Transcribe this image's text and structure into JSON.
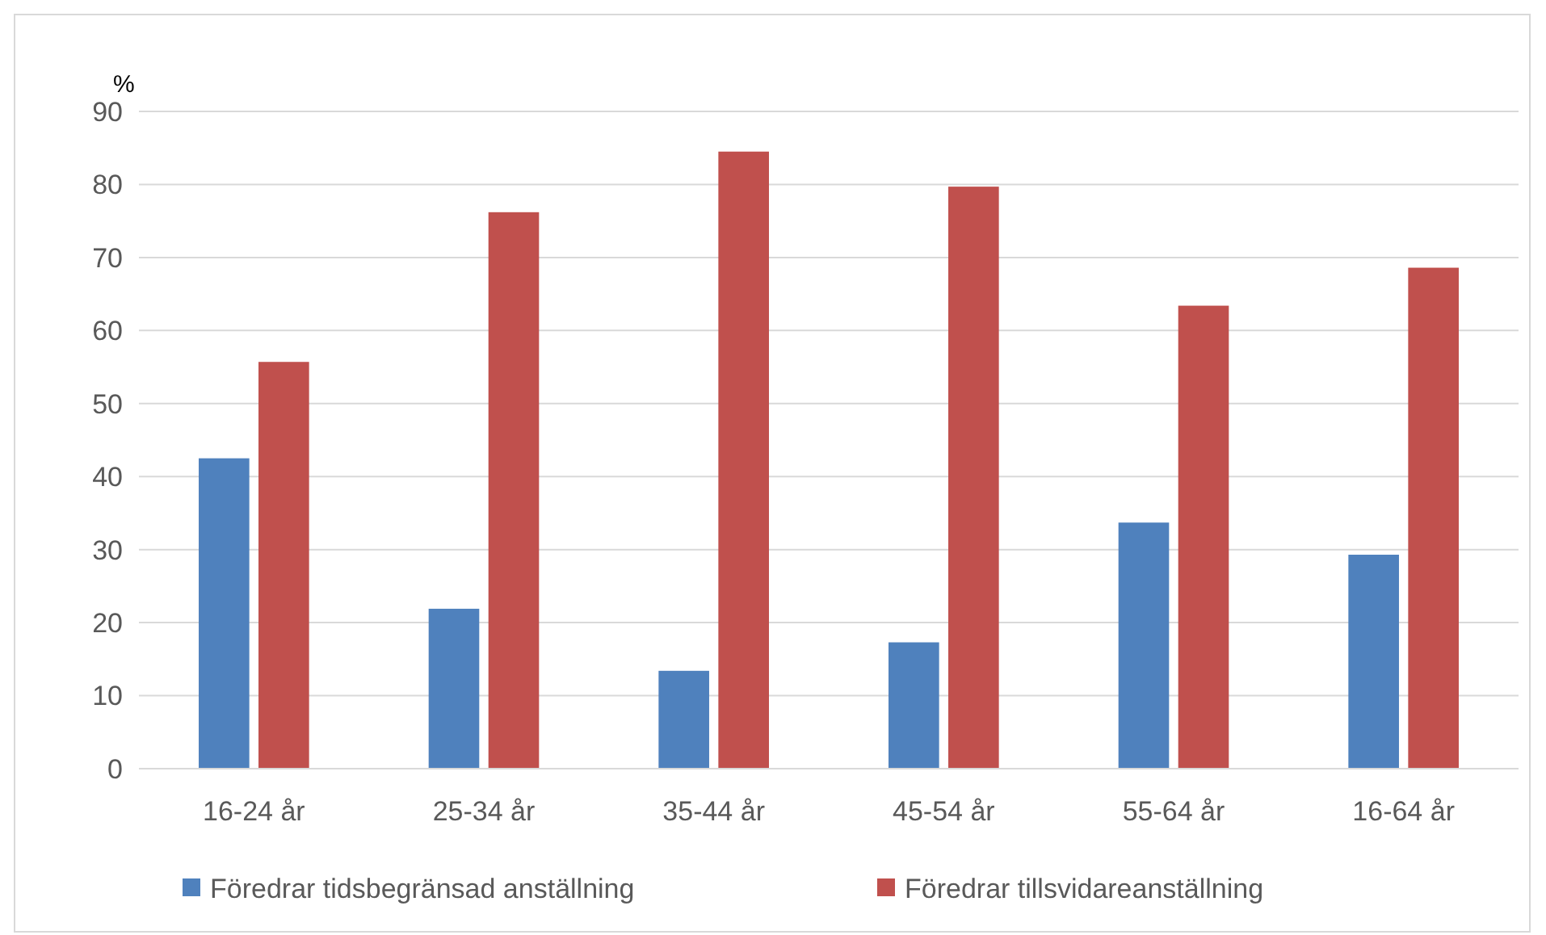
{
  "chart_data": {
    "type": "bar",
    "ylabel": "%",
    "categories": [
      "16-24 år",
      "25-34 år",
      "35-44 år",
      "45-54 år",
      "55-64 år",
      "16-64 år"
    ],
    "series": [
      {
        "name": "Föredrar tidsbegränsad anställning",
        "color": "#4f81bd",
        "values": [
          42.5,
          21.9,
          13.4,
          17.3,
          33.7,
          29.3
        ]
      },
      {
        "name": "Föredrar tillsvidareanställning",
        "color": "#c0504d",
        "values": [
          55.7,
          76.2,
          84.5,
          79.7,
          63.4,
          68.6
        ]
      }
    ],
    "ylim": [
      0,
      90
    ],
    "yticks": [
      0,
      10,
      20,
      30,
      40,
      50,
      60,
      70,
      80,
      90
    ],
    "grid": "y",
    "legend": "bottom"
  }
}
